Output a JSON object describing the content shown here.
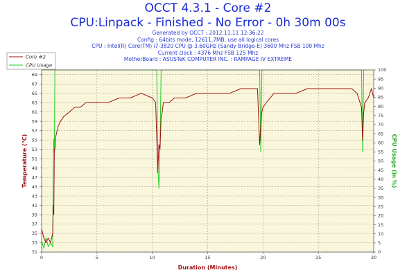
{
  "header": {
    "title": "OCCT 4.3.1 - Core #2",
    "subtitle": "CPU:Linpack - Finished - No Error - 0h 30m 00s",
    "info_lines": [
      "Generated by OCCT : 2012.11.11 12:36:22",
      "Config : 64bits mode, 12611,7MB, use all logical cores",
      "CPU : Intel(R) Core(TM) i7-3820 CPU @ 3.60GHz (Sandy Bridge-E) 3600 Mhz FSB 100 Mhz",
      "Current clock : 4376 Mhz FSB 125 Mhz",
      "MotherBoard : ASUSTeK COMPUTER INC. : RAMPAGE IV EXTREME"
    ]
  },
  "colors": {
    "temperature": "#9b1010",
    "cpu_usage": "#22cc22",
    "plot_bg": "#faf6dc",
    "grid": "#8a8a8a"
  },
  "chart_data": {
    "type": "line",
    "xlabel": "Duration (Minutes)",
    "ylabel": "Temperature (°C)",
    "y2label": "CPU Usage (in %)",
    "xlim": [
      0,
      30
    ],
    "ylim": [
      31,
      70
    ],
    "y2lim": [
      0,
      100
    ],
    "xticks": [
      0,
      5,
      10,
      15,
      20,
      25,
      30
    ],
    "yticks": [
      31,
      33,
      35,
      37,
      39,
      41,
      43,
      45,
      47,
      49,
      51,
      53,
      55,
      57,
      59,
      61,
      63,
      65,
      67,
      69
    ],
    "y2ticks": [
      0,
      5,
      10,
      15,
      20,
      25,
      30,
      35,
      40,
      45,
      50,
      55,
      60,
      65,
      70,
      75,
      80,
      85,
      90,
      95,
      100
    ],
    "grid": true,
    "legend": "top-left",
    "series": [
      {
        "name": "Core #2",
        "axis": "left",
        "x": [
          0,
          0.2,
          0.4,
          0.6,
          0.8,
          1.0,
          1.05,
          1.1,
          1.15,
          1.2,
          1.25,
          1.3,
          1.4,
          1.5,
          1.7,
          2.0,
          2.5,
          3.0,
          3.5,
          4.0,
          5.0,
          6.0,
          7.0,
          8.0,
          9.0,
          10.0,
          10.3,
          10.5,
          10.6,
          10.7,
          10.8,
          10.9,
          11.0,
          11.5,
          12.0,
          13.0,
          14.0,
          15.0,
          16.0,
          17.0,
          18.0,
          19.0,
          19.5,
          19.7,
          19.8,
          19.9,
          20.0,
          20.3,
          21.0,
          22.0,
          23.0,
          24.0,
          25.0,
          26.0,
          27.0,
          28.0,
          28.5,
          28.9,
          29.0,
          29.1,
          29.2,
          29.5,
          29.8,
          30.0
        ],
        "y": [
          36,
          34,
          33,
          34,
          33,
          35,
          41,
          39,
          53,
          53,
          55,
          56,
          57,
          58,
          59,
          60,
          61,
          62,
          62,
          63,
          63,
          63,
          64,
          64,
          65,
          64,
          63,
          48,
          54,
          53,
          60,
          61,
          63,
          63,
          64,
          64,
          65,
          65,
          65,
          65,
          66,
          66,
          66,
          54,
          58,
          61,
          62,
          63,
          65,
          65,
          65,
          66,
          66,
          66,
          66,
          66,
          65,
          62,
          55,
          61,
          63,
          64,
          66,
          64
        ]
      },
      {
        "name": "CPU Usage",
        "axis": "right",
        "x": [
          0,
          0.2,
          0.4,
          0.6,
          0.8,
          1.0,
          1.05,
          1.1,
          1.15,
          1.2,
          1.25,
          1.3,
          1.35,
          1.4,
          10.2,
          10.3,
          10.4,
          10.5,
          10.6,
          10.7,
          10.8,
          10.9,
          19.4,
          19.5,
          19.6,
          19.7,
          19.8,
          19.9,
          20.0,
          28.7,
          28.8,
          28.9,
          29.0,
          29.1,
          29.2
        ],
        "y": [
          6,
          2,
          8,
          3,
          5,
          3,
          50,
          62,
          55,
          100,
          100,
          100,
          100,
          100,
          100,
          100,
          100,
          48,
          35,
          60,
          100,
          100,
          100,
          100,
          100,
          100,
          55,
          100,
          100,
          100,
          100,
          100,
          55,
          100,
          100
        ]
      }
    ]
  }
}
